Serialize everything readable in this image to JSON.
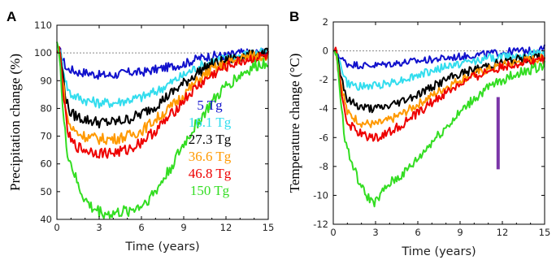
{
  "chart_data": [
    {
      "panel_label": "A",
      "type": "line",
      "xlabel": "Time (years)",
      "ylabel": "Precipitation change (%)",
      "xlim": [
        0,
        15
      ],
      "ylim": [
        40,
        110
      ],
      "xticks": [
        0,
        3,
        6,
        9,
        12,
        15
      ],
      "yticks": [
        40,
        50,
        60,
        70,
        80,
        90,
        100,
        110
      ],
      "reference_line": 100,
      "legend_placement": "right-center",
      "series": [
        {
          "name": "5 Tg",
          "color": "#1111cc",
          "x": [
            0,
            0.2,
            0.4,
            0.7,
            1,
            1.5,
            2,
            3,
            4,
            5,
            6,
            7,
            8,
            9,
            10,
            11,
            12,
            13,
            14,
            15
          ],
          "y": [
            100,
            101,
            98,
            94,
            94,
            93,
            93,
            92,
            92,
            93,
            93,
            94,
            95,
            96,
            98,
            99,
            99,
            100,
            100,
            100
          ]
        },
        {
          "name": "16.1 Tg",
          "color": "#33ddee",
          "x": [
            0,
            0.2,
            0.4,
            0.7,
            1,
            1.5,
            2,
            3,
            4,
            5,
            6,
            7,
            8,
            9,
            10,
            11,
            12,
            13,
            14,
            15
          ],
          "y": [
            100,
            101,
            96,
            88,
            85,
            84,
            83,
            82,
            82,
            83,
            84,
            86,
            89,
            92,
            95,
            97,
            98,
            99,
            100,
            100
          ]
        },
        {
          "name": "27.3 Tg",
          "color": "#000000",
          "x": [
            0,
            0.2,
            0.4,
            0.7,
            1,
            1.5,
            2,
            3,
            4,
            5,
            6,
            7,
            8,
            9,
            10,
            11,
            12,
            13,
            14,
            15
          ],
          "y": [
            100,
            101,
            93,
            82,
            78,
            77,
            76,
            75,
            75,
            76,
            78,
            81,
            85,
            89,
            93,
            96,
            97,
            99,
            99,
            100
          ]
        },
        {
          "name": "36.6 Tg",
          "color": "#ff9900",
          "x": [
            0,
            0.2,
            0.4,
            0.7,
            1,
            1.5,
            2,
            3,
            4,
            5,
            6,
            7,
            8,
            9,
            10,
            11,
            12,
            13,
            14,
            15
          ],
          "y": [
            100,
            101,
            91,
            77,
            73,
            71,
            70,
            69,
            69,
            70,
            72,
            76,
            80,
            85,
            90,
            94,
            96,
            98,
            99,
            99
          ]
        },
        {
          "name": "46.8 Tg",
          "color": "#ee0000",
          "x": [
            0,
            0.2,
            0.4,
            0.7,
            1,
            1.5,
            2,
            3,
            4,
            5,
            6,
            7,
            8,
            9,
            10,
            11,
            12,
            13,
            14,
            15
          ],
          "y": [
            100,
            101,
            89,
            73,
            68,
            66,
            65,
            64,
            64,
            65,
            68,
            72,
            77,
            83,
            88,
            92,
            95,
            97,
            98,
            99
          ]
        },
        {
          "name": "150 Tg",
          "color": "#33dd22",
          "x": [
            0,
            0.2,
            0.4,
            0.7,
            1,
            1.5,
            2,
            2.5,
            3,
            3.5,
            4,
            5,
            6,
            7,
            8,
            9,
            10,
            11,
            12,
            13,
            14,
            15
          ],
          "y": [
            104,
            100,
            80,
            65,
            60,
            52,
            47,
            44,
            43,
            42,
            42,
            43,
            45,
            50,
            58,
            67,
            75,
            82,
            88,
            92,
            95,
            97
          ]
        }
      ]
    },
    {
      "panel_label": "B",
      "type": "line",
      "xlabel": "Time (years)",
      "ylabel": "Temperature change (°C)",
      "xlim": [
        0,
        15
      ],
      "ylim": [
        -12,
        2
      ],
      "xticks": [
        0,
        3,
        6,
        9,
        12,
        15
      ],
      "yticks": [
        -12,
        -10,
        -8,
        -6,
        -4,
        -2,
        0,
        2
      ],
      "reference_line": 0,
      "annotation": {
        "type": "vertical-bar",
        "color": "#7b35a8",
        "x": 11.7,
        "y0": -8.2,
        "y1": -3.2
      },
      "series": [
        {
          "name": "5 Tg",
          "color": "#1111cc",
          "x": [
            0,
            0.2,
            0.5,
            1,
            2,
            3,
            4,
            5,
            6,
            7,
            8,
            9,
            10,
            11,
            12,
            13,
            14,
            15
          ],
          "y": [
            0,
            0,
            -0.5,
            -0.9,
            -1,
            -1,
            -0.9,
            -0.8,
            -0.7,
            -0.6,
            -0.5,
            -0.4,
            -0.3,
            -0.2,
            -0.1,
            0,
            0,
            0.2
          ]
        },
        {
          "name": "16.1 Tg",
          "color": "#33ddee",
          "x": [
            0,
            0.2,
            0.5,
            1,
            2,
            3,
            4,
            5,
            6,
            7,
            8,
            9,
            10,
            11,
            12,
            13,
            14,
            15
          ],
          "y": [
            0,
            0,
            -1,
            -2.3,
            -2.5,
            -2.4,
            -2.2,
            -2,
            -1.7,
            -1.4,
            -1.1,
            -0.9,
            -0.7,
            -0.5,
            -0.4,
            -0.3,
            -0.2,
            -0.2
          ]
        },
        {
          "name": "27.3 Tg",
          "color": "#000000",
          "x": [
            0,
            0.2,
            0.5,
            1,
            2,
            3,
            4,
            5,
            6,
            7,
            8,
            9,
            10,
            11,
            12,
            13,
            14,
            15
          ],
          "y": [
            0,
            0,
            -1.5,
            -3.4,
            -3.9,
            -4,
            -3.8,
            -3.4,
            -3,
            -2.5,
            -2,
            -1.6,
            -1.3,
            -1,
            -0.8,
            -0.6,
            -0.5,
            -0.4
          ]
        },
        {
          "name": "36.6 Tg",
          "color": "#ff9900",
          "x": [
            0,
            0.2,
            0.5,
            1,
            2,
            3,
            4,
            5,
            6,
            7,
            8,
            9,
            10,
            11,
            12,
            13,
            14,
            15
          ],
          "y": [
            0,
            0,
            -2,
            -4.3,
            -5,
            -5.1,
            -4.8,
            -4.3,
            -3.7,
            -3.1,
            -2.5,
            -2,
            -1.6,
            -1.3,
            -1,
            -0.8,
            -0.6,
            -0.5
          ]
        },
        {
          "name": "46.8 Tg",
          "color": "#ee0000",
          "x": [
            0,
            0.2,
            0.5,
            1,
            2,
            3,
            4,
            5,
            6,
            7,
            8,
            9,
            10,
            11,
            12,
            13,
            14,
            15
          ],
          "y": [
            0,
            0,
            -2.5,
            -5,
            -5.8,
            -6,
            -5.6,
            -5,
            -4.3,
            -3.6,
            -2.9,
            -2.3,
            -1.8,
            -1.4,
            -1.1,
            -0.9,
            -0.7,
            -0.6
          ]
        },
        {
          "name": "150 Tg",
          "color": "#33dd22",
          "x": [
            0,
            0.2,
            0.5,
            0.8,
            1.2,
            1.6,
            2,
            2.5,
            3,
            3.5,
            4,
            5,
            6,
            7,
            8,
            9,
            10,
            11,
            12,
            13,
            14,
            15
          ],
          "y": [
            0,
            0,
            -3,
            -6,
            -7.5,
            -8.5,
            -9.5,
            -10.2,
            -10.5,
            -9.8,
            -9.2,
            -8.5,
            -7.5,
            -6.3,
            -5.3,
            -4.3,
            -3.3,
            -2.6,
            -2,
            -1.6,
            -1.3,
            -1
          ]
        }
      ]
    }
  ]
}
